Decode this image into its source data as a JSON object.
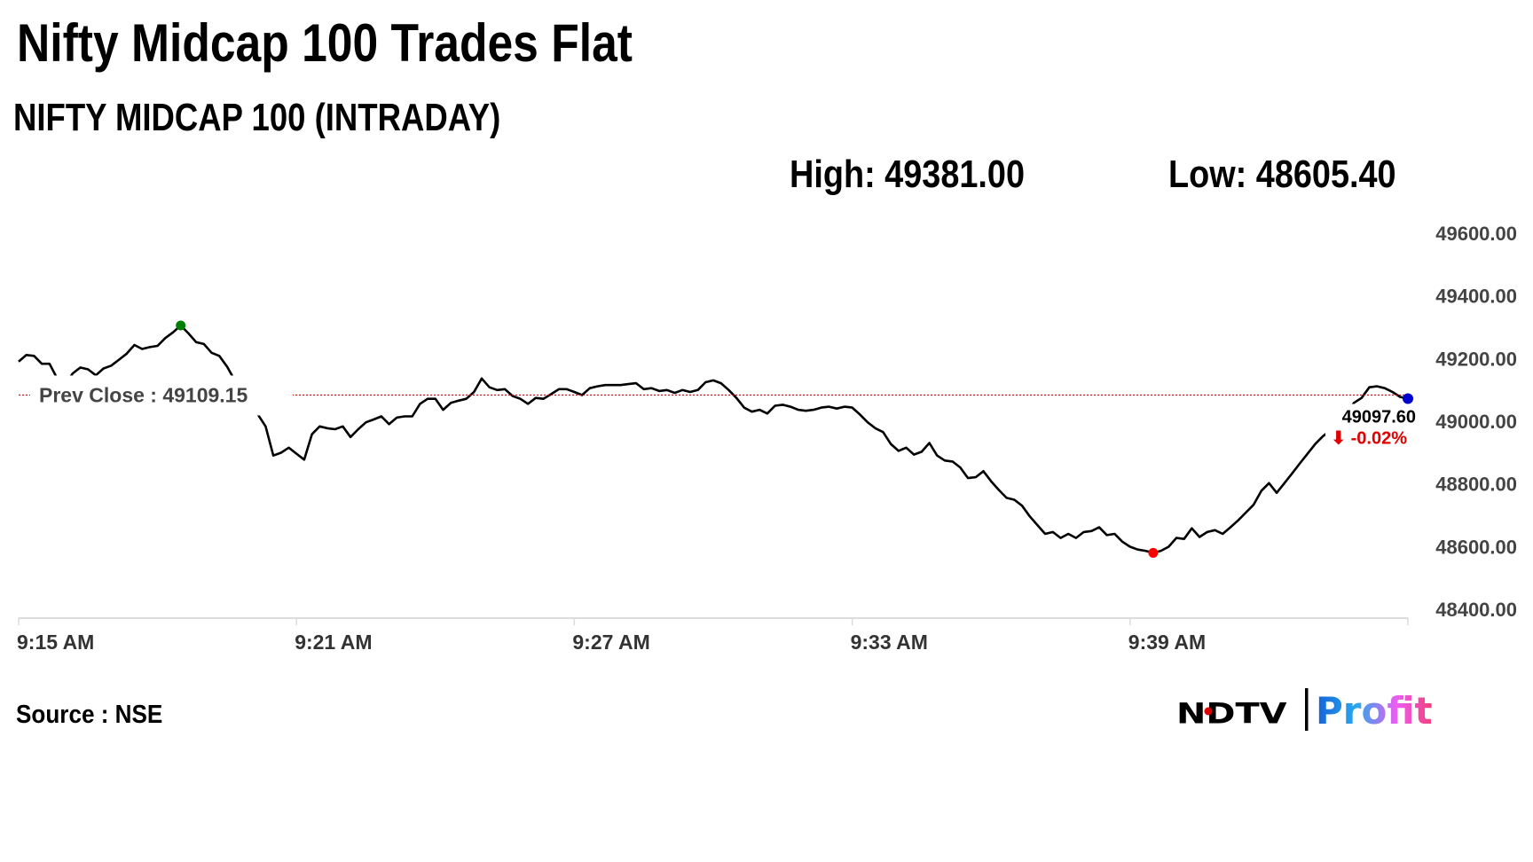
{
  "header": {
    "title": "Nifty Midcap 100 Trades Flat",
    "subtitle": "NIFTY MIDCAP 100 (INTRADAY)",
    "high": "High: 49381.00",
    "low": "Low: 48605.40"
  },
  "footer": {
    "source": "Source : NSE",
    "logo_text_1": "NDTV",
    "logo_text_2": "Profit"
  },
  "colors": {
    "line": "#000000",
    "prev_close_line": "#e00000",
    "high_marker": "#008000",
    "low_marker": "#ff0000",
    "last_marker": "#0000cc",
    "change_negative": "#e00000",
    "logo_gradient": [
      "#1463d6",
      "#29a8f0",
      "#f05bf0",
      "#f0407a"
    ]
  },
  "chart_data": {
    "type": "line",
    "title": "",
    "xlabel": "",
    "ylabel": "",
    "x_range": [
      "09:15:00",
      "09:45:00"
    ],
    "ylim": [
      48400,
      49600
    ],
    "grid": false,
    "y_axis_side": "right",
    "y_ticks": [
      "49600.00",
      "49400.00",
      "49200.00",
      "49000.00",
      "48800.00",
      "48600.00",
      "48400.00"
    ],
    "x_ticks": [
      {
        "time": "09:15:00",
        "label": "9:15 AM"
      },
      {
        "time": "09:21:00",
        "label": "9:21 AM"
      },
      {
        "time": "09:27:00",
        "label": "9:27 AM"
      },
      {
        "time": "09:33:00",
        "label": "9:33 AM"
      },
      {
        "time": "09:39:00",
        "label": "9:39 AM"
      },
      {
        "time": "09:45:00",
        "label": ""
      }
    ],
    "prev_close": {
      "value": 49109.15,
      "label": "Prev Close : 49109.15"
    },
    "last": {
      "value": 49097.6,
      "label": "49097.60",
      "change_label": "⬇ -0.02%"
    },
    "series": [
      [
        "09:15:00",
        49216
      ],
      [
        "09:15:10",
        49237
      ],
      [
        "09:15:20",
        49234
      ],
      [
        "09:15:30",
        49209
      ],
      [
        "09:15:40",
        49209
      ],
      [
        "09:15:50",
        49162
      ],
      [
        "09:16:00",
        49141
      ],
      [
        "09:16:10",
        49178
      ],
      [
        "09:16:20",
        49197
      ],
      [
        "09:16:30",
        49191
      ],
      [
        "09:16:40",
        49172
      ],
      [
        "09:16:50",
        49194
      ],
      [
        "09:17:00",
        49203
      ],
      [
        "09:17:10",
        49222
      ],
      [
        "09:17:20",
        49241
      ],
      [
        "09:17:30",
        49269
      ],
      [
        "09:17:40",
        49256
      ],
      [
        "09:17:50",
        49262
      ],
      [
        "09:18:00",
        49266
      ],
      [
        "09:18:10",
        49291
      ],
      [
        "09:18:20",
        49309
      ],
      [
        "09:18:30",
        49331
      ],
      [
        "09:18:40",
        49306
      ],
      [
        "09:18:50",
        49278
      ],
      [
        "09:19:00",
        49272
      ],
      [
        "09:19:10",
        49244
      ],
      [
        "09:19:20",
        49234
      ],
      [
        "09:19:30",
        49200
      ],
      [
        "09:19:40",
        49156
      ],
      [
        "09:19:50",
        49122
      ],
      [
        "09:20:00",
        49078
      ],
      [
        "09:20:10",
        49047
      ],
      [
        "09:20:20",
        49009
      ],
      [
        "09:20:30",
        48916
      ],
      [
        "09:20:40",
        48925
      ],
      [
        "09:20:50",
        48941
      ],
      [
        "09:21:00",
        48922
      ],
      [
        "09:21:10",
        48903
      ],
      [
        "09:21:20",
        48984
      ],
      [
        "09:21:30",
        49009
      ],
      [
        "09:21:40",
        49003
      ],
      [
        "09:21:50",
        49000
      ],
      [
        "09:22:00",
        49009
      ],
      [
        "09:22:10",
        48975
      ],
      [
        "09:22:20",
        49000
      ],
      [
        "09:22:30",
        49022
      ],
      [
        "09:22:40",
        49031
      ],
      [
        "09:22:50",
        49041
      ],
      [
        "09:23:00",
        49016
      ],
      [
        "09:23:10",
        49037
      ],
      [
        "09:23:20",
        49041
      ],
      [
        "09:23:30",
        49041
      ],
      [
        "09:23:40",
        49081
      ],
      [
        "09:23:50",
        49097
      ],
      [
        "09:24:00",
        49097
      ],
      [
        "09:24:10",
        49062
      ],
      [
        "09:24:20",
        49084
      ],
      [
        "09:24:30",
        49091
      ],
      [
        "09:24:40",
        49097
      ],
      [
        "09:24:50",
        49119
      ],
      [
        "09:25:00",
        49162
      ],
      [
        "09:25:10",
        49134
      ],
      [
        "09:25:20",
        49125
      ],
      [
        "09:25:30",
        49128
      ],
      [
        "09:25:40",
        49106
      ],
      [
        "09:25:50",
        49097
      ],
      [
        "09:26:00",
        49081
      ],
      [
        "09:26:10",
        49100
      ],
      [
        "09:26:20",
        49097
      ],
      [
        "09:26:30",
        49112
      ],
      [
        "09:26:40",
        49128
      ],
      [
        "09:26:50",
        49128
      ],
      [
        "09:27:00",
        49119
      ],
      [
        "09:27:10",
        49109
      ],
      [
        "09:27:20",
        49131
      ],
      [
        "09:27:30",
        49137
      ],
      [
        "09:27:40",
        49141
      ],
      [
        "09:27:50",
        49141
      ],
      [
        "09:28:00",
        49141
      ],
      [
        "09:28:10",
        49144
      ],
      [
        "09:28:20",
        49147
      ],
      [
        "09:28:30",
        49128
      ],
      [
        "09:28:40",
        49131
      ],
      [
        "09:28:50",
        49122
      ],
      [
        "09:29:00",
        49125
      ],
      [
        "09:29:10",
        49116
      ],
      [
        "09:29:20",
        49125
      ],
      [
        "09:29:30",
        49119
      ],
      [
        "09:29:40",
        49125
      ],
      [
        "09:29:50",
        49150
      ],
      [
        "09:30:00",
        49156
      ],
      [
        "09:30:10",
        49147
      ],
      [
        "09:30:20",
        49125
      ],
      [
        "09:30:30",
        49100
      ],
      [
        "09:30:40",
        49069
      ],
      [
        "09:30:50",
        49056
      ],
      [
        "09:31:00",
        49062
      ],
      [
        "09:31:10",
        49050
      ],
      [
        "09:31:20",
        49075
      ],
      [
        "09:31:30",
        49078
      ],
      [
        "09:31:40",
        49072
      ],
      [
        "09:31:50",
        49062
      ],
      [
        "09:32:00",
        49059
      ],
      [
        "09:32:10",
        49062
      ],
      [
        "09:32:20",
        49069
      ],
      [
        "09:32:30",
        49072
      ],
      [
        "09:32:40",
        49066
      ],
      [
        "09:32:50",
        49072
      ],
      [
        "09:33:00",
        49069
      ],
      [
        "09:33:10",
        49047
      ],
      [
        "09:33:20",
        49022
      ],
      [
        "09:33:30",
        49003
      ],
      [
        "09:33:40",
        48991
      ],
      [
        "09:33:50",
        48953
      ],
      [
        "09:34:00",
        48931
      ],
      [
        "09:34:10",
        48941
      ],
      [
        "09:34:20",
        48919
      ],
      [
        "09:34:30",
        48928
      ],
      [
        "09:34:40",
        48956
      ],
      [
        "09:34:50",
        48916
      ],
      [
        "09:35:00",
        48900
      ],
      [
        "09:35:10",
        48897
      ],
      [
        "09:35:20",
        48878
      ],
      [
        "09:35:30",
        48844
      ],
      [
        "09:35:40",
        48847
      ],
      [
        "09:35:50",
        48866
      ],
      [
        "09:36:00",
        48834
      ],
      [
        "09:36:10",
        48806
      ],
      [
        "09:36:20",
        48781
      ],
      [
        "09:36:30",
        48775
      ],
      [
        "09:36:40",
        48756
      ],
      [
        "09:36:50",
        48722
      ],
      [
        "09:37:00",
        48694
      ],
      [
        "09:37:10",
        48666
      ],
      [
        "09:37:20",
        48672
      ],
      [
        "09:37:30",
        48653
      ],
      [
        "09:37:40",
        48666
      ],
      [
        "09:37:50",
        48653
      ],
      [
        "09:38:00",
        48672
      ],
      [
        "09:38:10",
        48675
      ],
      [
        "09:38:20",
        48687
      ],
      [
        "09:38:30",
        48662
      ],
      [
        "09:38:40",
        48666
      ],
      [
        "09:38:50",
        48641
      ],
      [
        "09:39:00",
        48625
      ],
      [
        "09:39:10",
        48616
      ],
      [
        "09:39:20",
        48612
      ],
      [
        "09:39:30",
        48605.4
      ],
      [
        "09:39:40",
        48612
      ],
      [
        "09:39:50",
        48625
      ],
      [
        "09:40:00",
        48653
      ],
      [
        "09:40:10",
        48650
      ],
      [
        "09:40:20",
        48684
      ],
      [
        "09:40:30",
        48656
      ],
      [
        "09:40:40",
        48672
      ],
      [
        "09:40:50",
        48678
      ],
      [
        "09:41:00",
        48666
      ],
      [
        "09:41:10",
        48687
      ],
      [
        "09:41:20",
        48709
      ],
      [
        "09:41:30",
        48734
      ],
      [
        "09:41:40",
        48759
      ],
      [
        "09:41:50",
        48803
      ],
      [
        "09:42:00",
        48828
      ],
      [
        "09:42:10",
        48797
      ],
      [
        "09:42:20",
        48828
      ],
      [
        "09:42:30",
        48859
      ],
      [
        "09:42:40",
        48891
      ],
      [
        "09:42:50",
        48922
      ],
      [
        "09:43:00",
        48953
      ],
      [
        "09:43:10",
        48978
      ],
      [
        "09:43:20",
        48997
      ],
      [
        "09:43:30",
        49016
      ],
      [
        "09:43:40",
        49047
      ],
      [
        "09:43:50",
        49084
      ],
      [
        "09:44:00",
        49100
      ],
      [
        "09:44:10",
        49134
      ],
      [
        "09:44:20",
        49137
      ],
      [
        "09:44:30",
        49131
      ],
      [
        "09:44:40",
        49119
      ],
      [
        "09:44:50",
        49103
      ],
      [
        "09:45:00",
        49097.6
      ]
    ]
  }
}
